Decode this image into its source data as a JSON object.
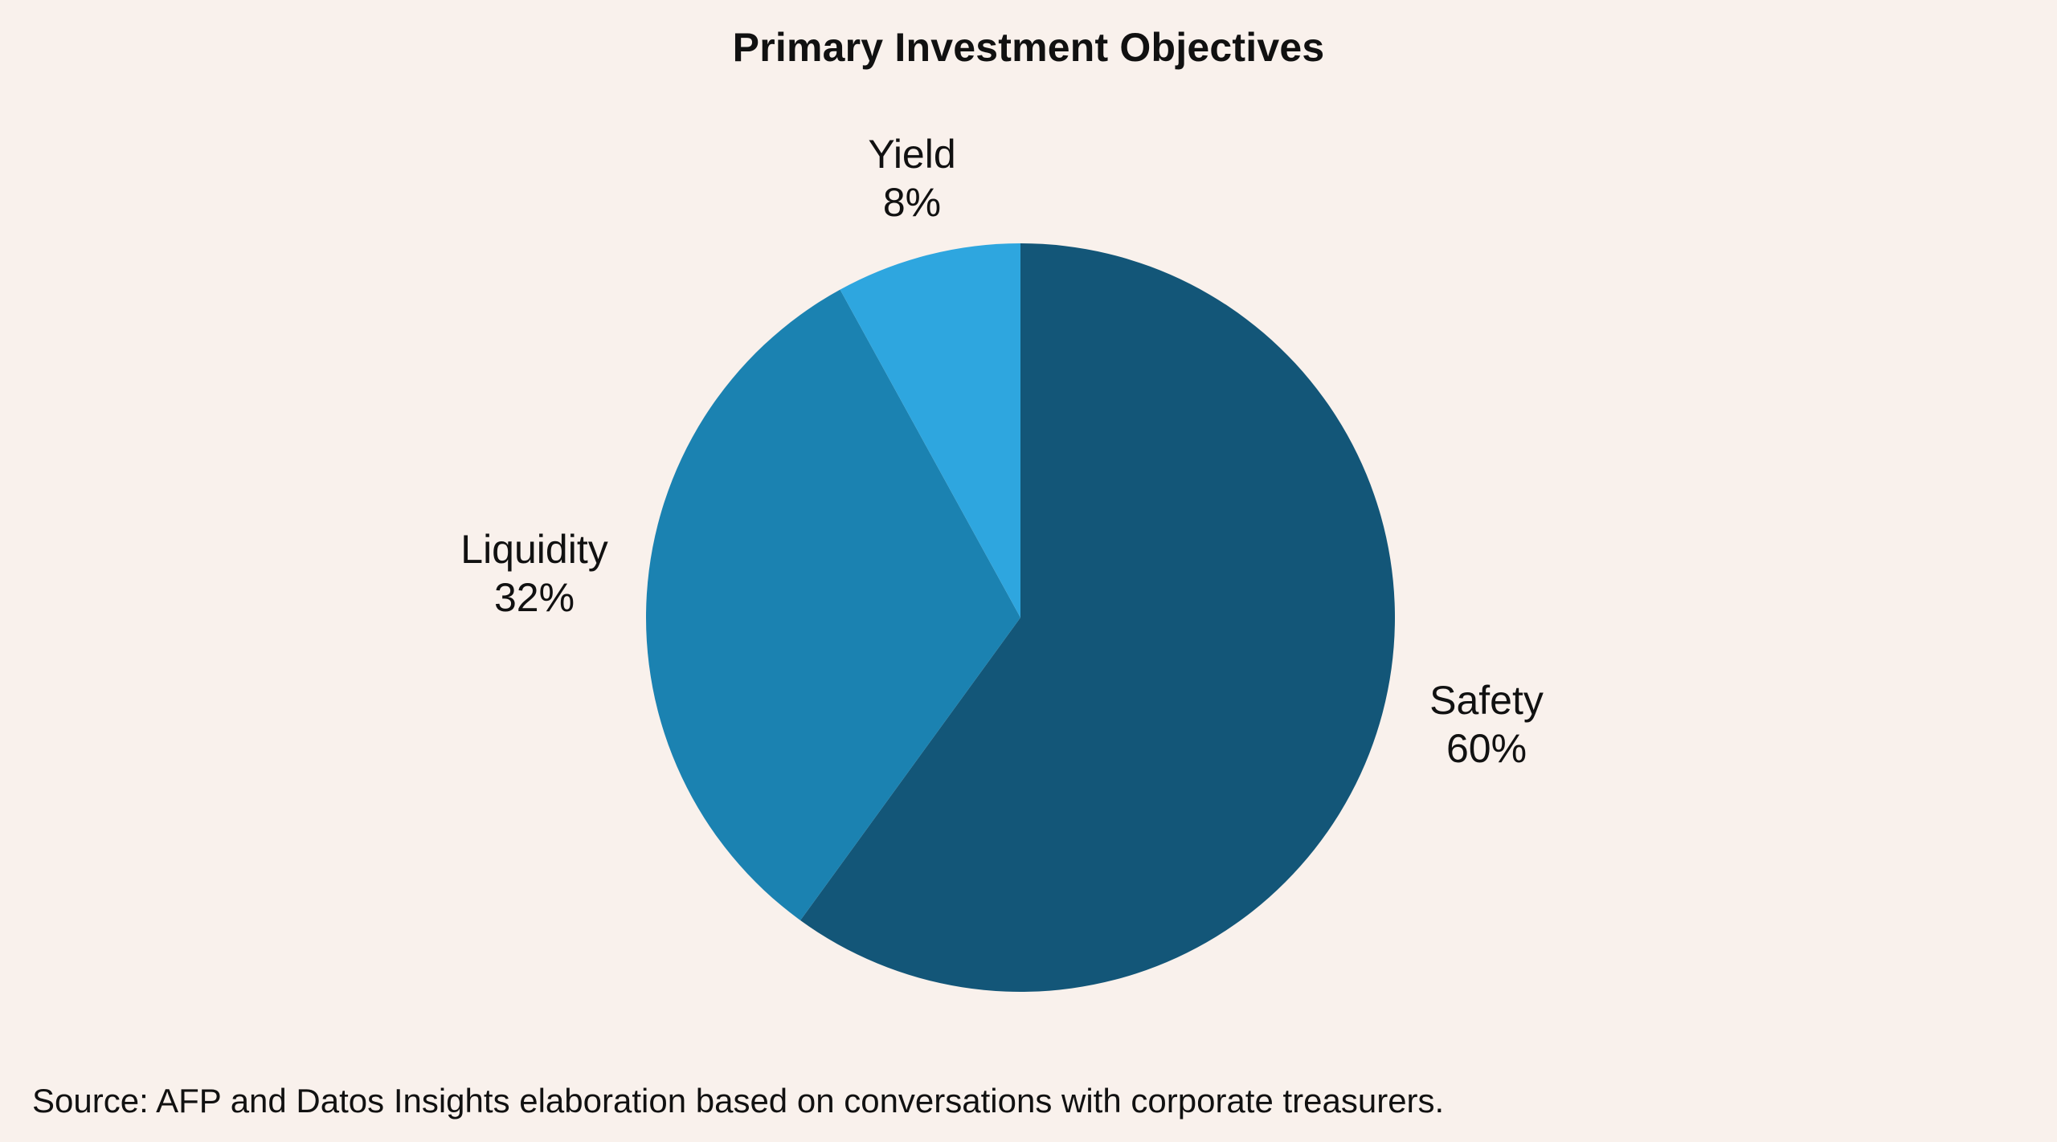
{
  "chart_data": {
    "type": "pie",
    "title": "Primary Investment Objectives",
    "slices": [
      {
        "label": "Safety",
        "value": 60,
        "display": "60%",
        "color": "#135678"
      },
      {
        "label": "Liquidity",
        "value": 32,
        "display": "32%",
        "color": "#1b82b1"
      },
      {
        "label": "Yield",
        "value": 8,
        "display": "8%",
        "color": "#2ea6df"
      }
    ],
    "start": "12 o'clock",
    "direction": "clockwise"
  },
  "source": "Source: AFP and Datos Insights elaboration based on conversations with corporate treasurers."
}
